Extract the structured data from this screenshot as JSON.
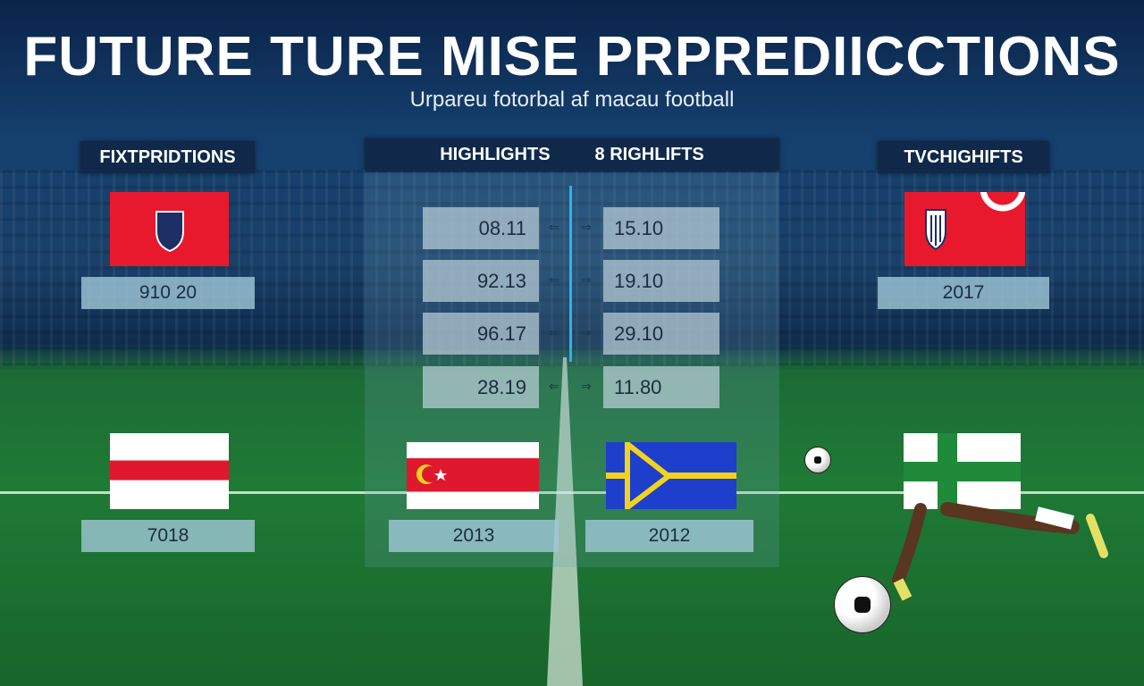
{
  "header": {
    "title": "FUTURE TURE MISE PRPREDIICCTIONS",
    "subtitle": "Urpareu fotorbal af macau football"
  },
  "tabs": {
    "left": "FIXTPRIDTIONS",
    "center_a": "HIGHLIGHTS",
    "center_b": "8 RIGHLIFTS",
    "right": "TVCHIGHIFTS"
  },
  "odds": [
    {
      "left": "08.11",
      "right": "15.10"
    },
    {
      "left": "92.13",
      "right": "19.10"
    },
    {
      "left": "96.17",
      "right": "29.10"
    },
    {
      "left": "28.19",
      "right": "11.80"
    }
  ],
  "arrows": {
    "left": "⇐",
    "right": "⇒"
  },
  "teams": {
    "top_left": {
      "label": "910 20",
      "flag_colors": [
        "#e8192c"
      ]
    },
    "top_right": {
      "label": "2017",
      "flag_colors": [
        "#e8192c"
      ]
    },
    "bottom_left": {
      "label": "7018",
      "flag_colors": [
        "#ffffff",
        "#e0182d"
      ]
    },
    "bottom_center_left": {
      "label": "2013",
      "flag_colors": [
        "#ffffff",
        "#e0182d"
      ]
    },
    "bottom_center_right": {
      "label": "2012",
      "flag_colors": [
        "#1d3fcc",
        "#f2d21c"
      ]
    },
    "bottom_right": {
      "flag_colors": [
        "#ffffff",
        "#1e8a3a"
      ]
    }
  },
  "colors": {
    "accent": "#29b6e6",
    "tab_bg": "#10294a"
  }
}
